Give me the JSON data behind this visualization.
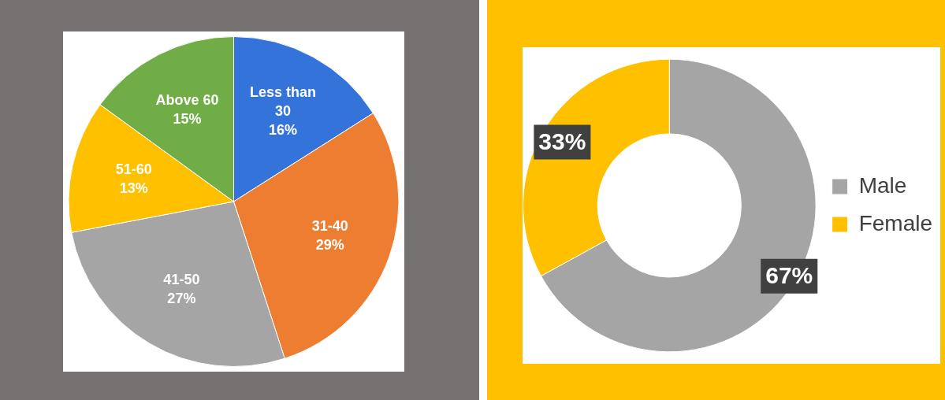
{
  "chart_data": [
    {
      "type": "pie",
      "categories": [
        "Less than 30",
        "31-40",
        "41-50",
        "51-60",
        "Above 60"
      ],
      "values": [
        16,
        29,
        27,
        13,
        15
      ],
      "value_labels": [
        "16%",
        "29%",
        "27%",
        "13%",
        "15%"
      ],
      "colors": [
        "#3473d9",
        "#ed7d31",
        "#a5a5a5",
        "#ffc000",
        "#70ad47"
      ],
      "legend": false
    },
    {
      "type": "donut",
      "categories": [
        "Male",
        "Female"
      ],
      "values": [
        67,
        33
      ],
      "value_labels": [
        "67%",
        "33%"
      ],
      "colors": [
        "#a5a5a5",
        "#ffc000"
      ],
      "legend": "right"
    }
  ]
}
